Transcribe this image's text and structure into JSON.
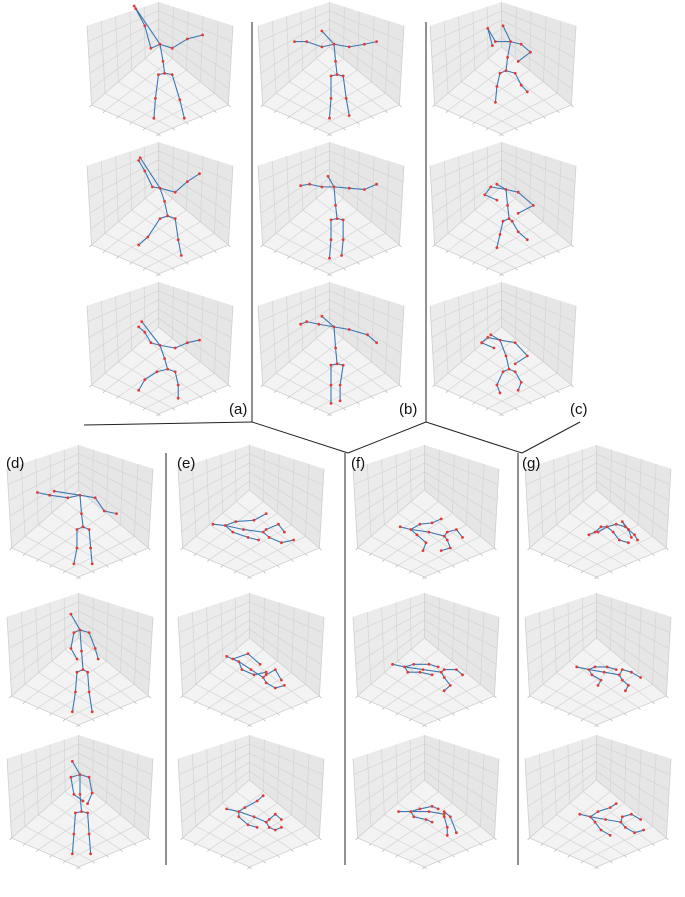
{
  "figure": {
    "groups": [
      {
        "id": "a",
        "label": "(a)"
      },
      {
        "id": "b",
        "label": "(b)"
      },
      {
        "id": "c",
        "label": "(c)"
      },
      {
        "id": "d",
        "label": "(d)"
      },
      {
        "id": "e",
        "label": "(e)"
      },
      {
        "id": "f",
        "label": "(f)"
      },
      {
        "id": "g",
        "label": "(g)"
      }
    ],
    "colors": {
      "bone": "#3a78b5",
      "joint": "#e53935",
      "pane_top": "#f3f3f3",
      "pane_left": "#ebebeb",
      "pane_right": "#e6e6e6",
      "grid": "#d4d4d4",
      "divider": "#222222"
    }
  }
}
